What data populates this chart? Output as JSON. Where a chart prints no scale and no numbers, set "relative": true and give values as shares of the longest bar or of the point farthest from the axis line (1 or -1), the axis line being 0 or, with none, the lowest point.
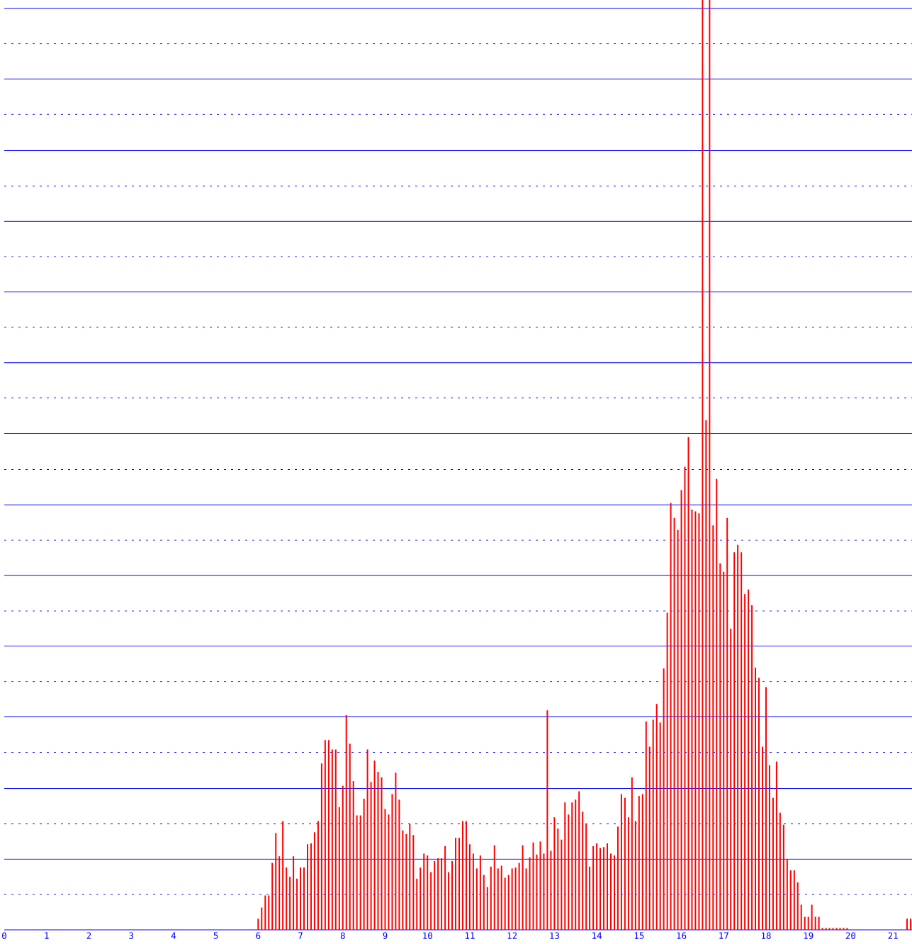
{
  "chart_data": {
    "type": "bar",
    "relative": true,
    "color": "#ff0000",
    "xlim": [
      0,
      21.45
    ],
    "xticks": [
      0,
      1,
      2,
      3,
      4,
      5,
      6,
      7,
      8,
      9,
      10,
      11,
      12,
      13,
      14,
      15,
      16,
      17,
      18,
      19,
      20,
      21
    ],
    "ref_lines": [
      {
        "axis": "y",
        "value": 0.038,
        "color": "#0000ff",
        "line_style": "dotted"
      },
      {
        "axis": "y",
        "value": 0.076,
        "color": "#0000ff",
        "line_style": "solid"
      },
      {
        "axis": "y",
        "value": 0.114,
        "color": "#0000ff",
        "line_style": "dotted"
      },
      {
        "axis": "y",
        "value": 0.152,
        "color": "#0000ff",
        "line_style": "solid"
      },
      {
        "axis": "y",
        "value": 0.191,
        "color": "#0000ff",
        "line_style": "dotted"
      },
      {
        "axis": "y",
        "value": 0.229,
        "color": "#0000ff",
        "line_style": "solid"
      },
      {
        "axis": "y",
        "value": 0.267,
        "color": "#0000ff",
        "line_style": "dotted"
      },
      {
        "axis": "y",
        "value": 0.305,
        "color": "#0000ff",
        "line_style": "solid"
      },
      {
        "axis": "y",
        "value": 0.343,
        "color": "#0000ff",
        "line_style": "dotted"
      },
      {
        "axis": "y",
        "value": 0.381,
        "color": "#0000ff",
        "line_style": "solid"
      },
      {
        "axis": "y",
        "value": 0.419,
        "color": "#0000ff",
        "line_style": "dotted"
      },
      {
        "axis": "y",
        "value": 0.457,
        "color": "#0000ff",
        "line_style": "solid"
      },
      {
        "axis": "y",
        "value": 0.495,
        "color": "#0000ff",
        "line_style": "dotted"
      },
      {
        "axis": "y",
        "value": 0.534,
        "color": "#0000ff",
        "line_style": "solid"
      },
      {
        "axis": "y",
        "value": 0.572,
        "color": "#0000ff",
        "line_style": "dotted"
      },
      {
        "axis": "y",
        "value": 0.61,
        "color": "#0000ff",
        "line_style": "solid"
      },
      {
        "axis": "y",
        "value": 0.648,
        "color": "#0000ff",
        "line_style": "dotted"
      },
      {
        "axis": "y",
        "value": 0.686,
        "color": "#0000ff",
        "line_style": "solid"
      },
      {
        "axis": "y",
        "value": 0.724,
        "color": "#0000ff",
        "line_style": "dotted"
      },
      {
        "axis": "y",
        "value": 0.762,
        "color": "#0000ff",
        "line_style": "solid"
      },
      {
        "axis": "y",
        "value": 0.8,
        "color": "#0000ff",
        "line_style": "dotted"
      },
      {
        "axis": "y",
        "value": 0.838,
        "color": "#0000ff",
        "line_style": "solid"
      },
      {
        "axis": "y",
        "value": 0.877,
        "color": "#0000ff",
        "line_style": "dotted"
      },
      {
        "axis": "y",
        "value": 0.915,
        "color": "#0000ff",
        "line_style": "solid"
      },
      {
        "axis": "y",
        "value": 0.953,
        "color": "#0000ff",
        "line_style": "dotted"
      },
      {
        "axis": "y",
        "value": 0.991,
        "color": "#0000ff",
        "line_style": "solid"
      }
    ],
    "x": [
      6,
      6.083,
      6.167,
      6.25,
      6.333,
      6.417,
      6.5,
      6.583,
      6.667,
      6.75,
      6.833,
      6.917,
      7,
      7.083,
      7.167,
      7.25,
      7.333,
      7.417,
      7.5,
      7.583,
      7.667,
      7.75,
      7.833,
      7.917,
      8,
      8.083,
      8.167,
      8.25,
      8.333,
      8.417,
      8.5,
      8.583,
      8.667,
      8.75,
      8.833,
      8.917,
      9,
      9.083,
      9.167,
      9.25,
      9.333,
      9.417,
      9.5,
      9.583,
      9.667,
      9.75,
      9.833,
      9.917,
      10,
      10.083,
      10.167,
      10.25,
      10.333,
      10.417,
      10.5,
      10.583,
      10.667,
      10.75,
      10.833,
      10.917,
      11,
      11.083,
      11.167,
      11.25,
      11.333,
      11.417,
      11.5,
      11.583,
      11.667,
      11.75,
      11.833,
      11.917,
      12,
      12.083,
      12.167,
      12.25,
      12.333,
      12.417,
      12.5,
      12.583,
      12.667,
      12.75,
      12.833,
      12.917,
      13,
      13.083,
      13.167,
      13.25,
      13.333,
      13.417,
      13.5,
      13.583,
      13.667,
      13.75,
      13.833,
      13.917,
      14,
      14.083,
      14.167,
      14.25,
      14.333,
      14.417,
      14.5,
      14.583,
      14.667,
      14.75,
      14.833,
      14.917,
      15,
      15.083,
      15.167,
      15.25,
      15.333,
      15.417,
      15.5,
      15.583,
      15.667,
      15.75,
      15.833,
      15.917,
      16,
      16.083,
      16.167,
      16.25,
      16.333,
      16.417,
      16.5,
      16.583,
      16.667,
      16.75,
      16.833,
      16.917,
      17,
      17.083,
      17.167,
      17.25,
      17.333,
      17.417,
      17.5,
      17.583,
      17.667,
      17.75,
      17.833,
      17.917,
      18,
      18.083,
      18.167,
      18.25,
      18.333,
      18.417,
      18.5,
      18.583,
      18.667,
      18.75,
      18.833,
      18.917,
      19,
      19.083,
      19.167,
      19.25,
      19.333,
      19.417,
      19.5,
      19.583,
      19.667,
      19.75,
      19.833,
      19.917,
      21.333,
      21.417
    ],
    "values": [
      0.012,
      0.024,
      0.037,
      0.037,
      0.072,
      0.104,
      0.079,
      0.117,
      0.067,
      0.057,
      0.079,
      0.055,
      0.067,
      0.067,
      0.092,
      0.093,
      0.105,
      0.117,
      0.179,
      0.204,
      0.204,
      0.194,
      0.194,
      0.132,
      0.155,
      0.231,
      0.2,
      0.16,
      0.123,
      0.123,
      0.141,
      0.194,
      0.159,
      0.182,
      0.17,
      0.164,
      0.13,
      0.124,
      0.146,
      0.169,
      0.14,
      0.107,
      0.103,
      0.114,
      0.102,
      0.055,
      0.067,
      0.082,
      0.08,
      0.062,
      0.074,
      0.077,
      0.077,
      0.09,
      0.062,
      0.074,
      0.099,
      0.099,
      0.117,
      0.117,
      0.092,
      0.082,
      0.066,
      0.08,
      0.059,
      0.046,
      0.068,
      0.091,
      0.066,
      0.069,
      0.056,
      0.059,
      0.066,
      0.067,
      0.072,
      0.091,
      0.066,
      0.078,
      0.094,
      0.081,
      0.095,
      0.082,
      0.236,
      0.085,
      0.121,
      0.109,
      0.097,
      0.137,
      0.124,
      0.137,
      0.14,
      0.149,
      0.127,
      0.114,
      0.068,
      0.09,
      0.093,
      0.088,
      0.089,
      0.093,
      0.082,
      0.08,
      0.111,
      0.146,
      0.142,
      0.121,
      0.164,
      0.117,
      0.144,
      0.146,
      0.224,
      0.197,
      0.226,
      0.243,
      0.223,
      0.281,
      0.341,
      0.459,
      0.443,
      0.43,
      0.473,
      0.498,
      0.53,
      0.452,
      0.45,
      0.448,
      1,
      0.548,
      1,
      0.435,
      0.485,
      0.394,
      0.385,
      0.443,
      0.324,
      0.406,
      0.414,
      0.406,
      0.361,
      0.366,
      0.349,
      0.282,
      0.271,
      0.197,
      0.261,
      0.177,
      0.142,
      0.181,
      0.126,
      0.113,
      0.076,
      0.064,
      0.064,
      0.051,
      0.027,
      0.014,
      0.014,
      0.027,
      0.014,
      0.014,
      0.002,
      0.002,
      0.002,
      0.002,
      0.002,
      0.002,
      0.002,
      0.002,
      0.012,
      0.012
    ]
  }
}
